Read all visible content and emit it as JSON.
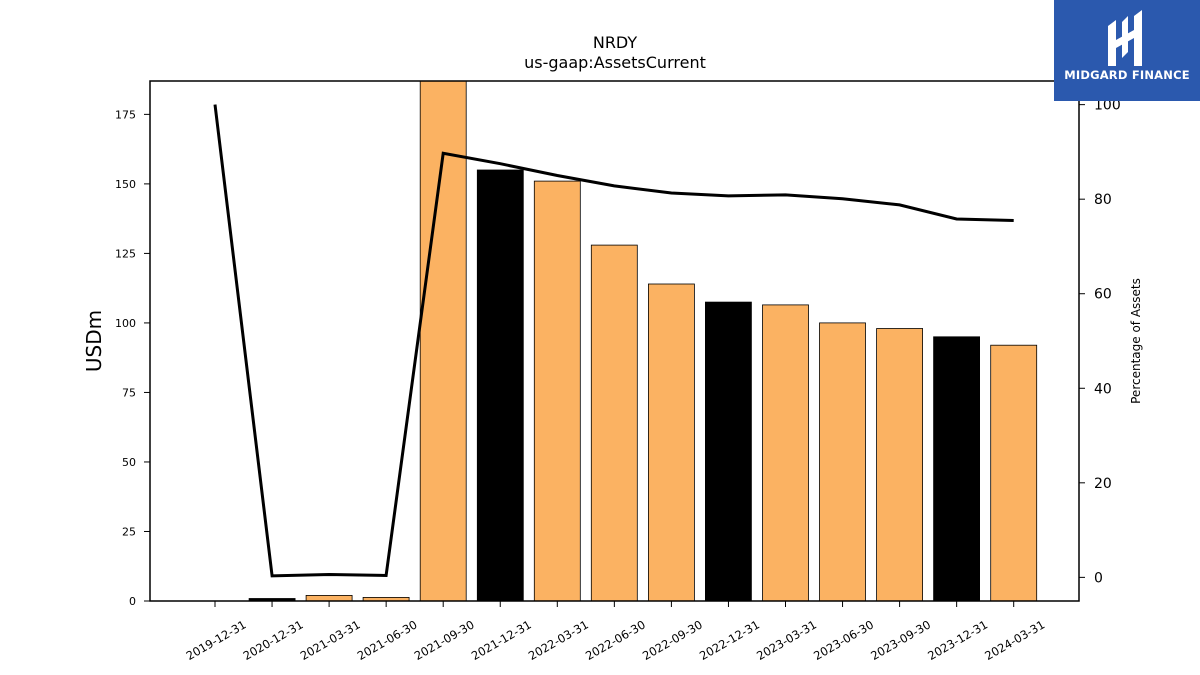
{
  "chart_data": {
    "type": "bar",
    "title": "NRDY",
    "subtitle": "us-gaap:AssetsCurrent",
    "ylabel": "USDm",
    "y2label": "Percentage of Assets",
    "ylim": [
      0,
      187
    ],
    "y2lim": [
      -5,
      105
    ],
    "yticks": [
      0,
      25,
      50,
      75,
      100,
      125,
      150,
      175
    ],
    "y2ticks": [
      0,
      20,
      40,
      60,
      80,
      100
    ],
    "categories": [
      "2019-12-31",
      "2020-12-31",
      "2021-03-31",
      "2021-06-30",
      "2021-09-30",
      "2021-12-31",
      "2022-03-31",
      "2022-06-30",
      "2022-09-30",
      "2022-12-31",
      "2023-03-31",
      "2023-06-30",
      "2023-09-30",
      "2023-12-31",
      "2024-03-31"
    ],
    "series": [
      {
        "type": "bar",
        "values": [
          0,
          0.9,
          2.0,
          1.3,
          187,
          155,
          151,
          128,
          114,
          107.5,
          106.5,
          100,
          98,
          95,
          92
        ],
        "colors": [
          "#fbb262",
          "#000000",
          "#fbb262",
          "#fbb262",
          "#fbb262",
          "#000000",
          "#fbb262",
          "#fbb262",
          "#fbb262",
          "#000000",
          "#fbb262",
          "#fbb262",
          "#fbb262",
          "#000000",
          "#fbb262"
        ]
      },
      {
        "type": "line",
        "axis": "right",
        "values": [
          100,
          0.3,
          0.6,
          0.4,
          89.7,
          87.5,
          85.0,
          82.8,
          81.3,
          80.7,
          80.9,
          80.1,
          78.8,
          75.8,
          75.5
        ]
      }
    ],
    "grid": false,
    "legend": "none"
  },
  "logo": {
    "text": "MIDGARD FINANCE",
    "color": "#2b59ae"
  }
}
